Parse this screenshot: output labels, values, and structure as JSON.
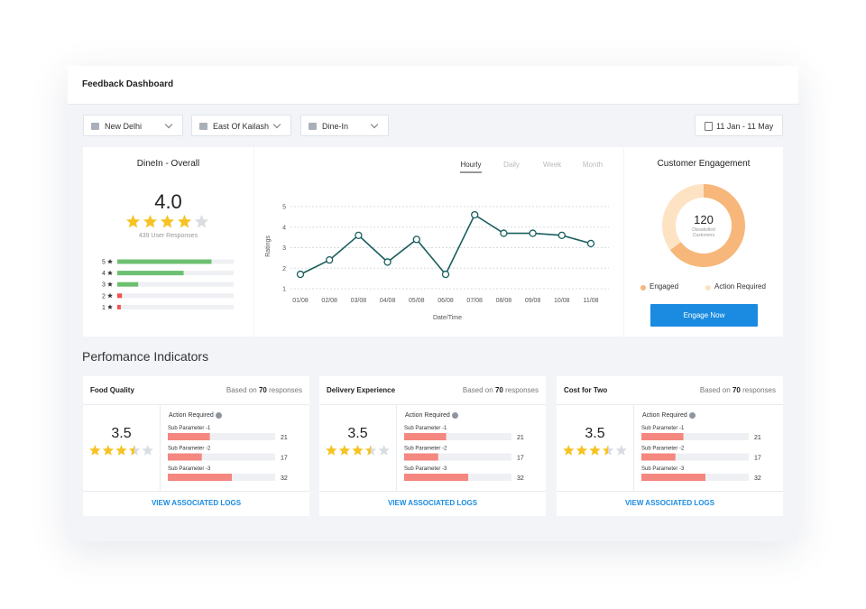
{
  "header": {
    "title": "Feedback Dashboard"
  },
  "filters": [
    "New Delhi",
    "East Of Kailash",
    "Dine-In"
  ],
  "date_range": "11 Jan - 11 May",
  "overall": {
    "title": "DineIn - Overall",
    "rating": "4.0",
    "responses": "439 User Responses",
    "distribution": {
      "labels": [
        "5",
        "4",
        "3",
        "2",
        "1"
      ],
      "values": [
        81,
        57,
        18,
        4,
        3
      ],
      "color": "#6cc070",
      "low_color": "#f0524f"
    }
  },
  "chart_data": {
    "type": "line",
    "tabs": [
      "Hourly",
      "Daily",
      "Week",
      "Month"
    ],
    "active_tab": "Hourly",
    "y_label": "Ratings",
    "x_label": "Date/Time",
    "categories": [
      "01/08",
      "02/08",
      "03/08",
      "04/08",
      "05/08",
      "06/08",
      "07/08",
      "08/08",
      "09/08",
      "10/08",
      "11/08"
    ],
    "values": [
      1.7,
      2.4,
      3.6,
      2.3,
      3.4,
      1.7,
      4.6,
      3.7,
      3.7,
      3.6,
      3.2
    ],
    "color": "#1a5e5e",
    "ylim": [
      1,
      5
    ],
    "yticks": [
      1,
      2,
      3,
      4,
      5
    ],
    "grid": true
  },
  "engagement": {
    "title": "Customer Engagement",
    "count": "120",
    "count_label": "Dissatisfied Customers",
    "segments": [
      {
        "name": "Engaged",
        "value": 65,
        "color": "#f7b77a"
      },
      {
        "name": "Action Required",
        "value": 35,
        "color": "#fde3c3"
      }
    ],
    "button": "Engage Now"
  },
  "section_title": "Perfomance Indicators",
  "cards": [
    {
      "title": "Food Quality",
      "based_on": "Based on",
      "responses": "70",
      "responses_suffix": "responses",
      "score": "3.5",
      "action": "Action Required",
      "params": [
        {
          "name": "Sub Parameter -1",
          "value": 21
        },
        {
          "name": "Sub Parameter -2",
          "value": 17
        },
        {
          "name": "Sub Parameter -3",
          "value": 32
        }
      ],
      "link": "VIEW ASSOCIATED LOGS"
    },
    {
      "title": "Delivery Experience",
      "based_on": "Based on",
      "responses": "70",
      "responses_suffix": "responses",
      "score": "3.5",
      "action": "Action Required",
      "params": [
        {
          "name": "Sub Parameter -1",
          "value": 21
        },
        {
          "name": "Sub Parameter -2",
          "value": 17
        },
        {
          "name": "Sub Parameter -3",
          "value": 32
        }
      ],
      "link": "VIEW ASSOCIATED LOGS"
    },
    {
      "title": "Cost for Two",
      "based_on": "Based on",
      "responses": "70",
      "responses_suffix": "responses",
      "score": "3.5",
      "action": "Action Required",
      "params": [
        {
          "name": "Sub Parameter -1",
          "value": 21
        },
        {
          "name": "Sub Parameter -2",
          "value": 17
        },
        {
          "name": "Sub Parameter -3",
          "value": 32
        }
      ],
      "link": "VIEW ASSOCIATED LOGS"
    }
  ]
}
